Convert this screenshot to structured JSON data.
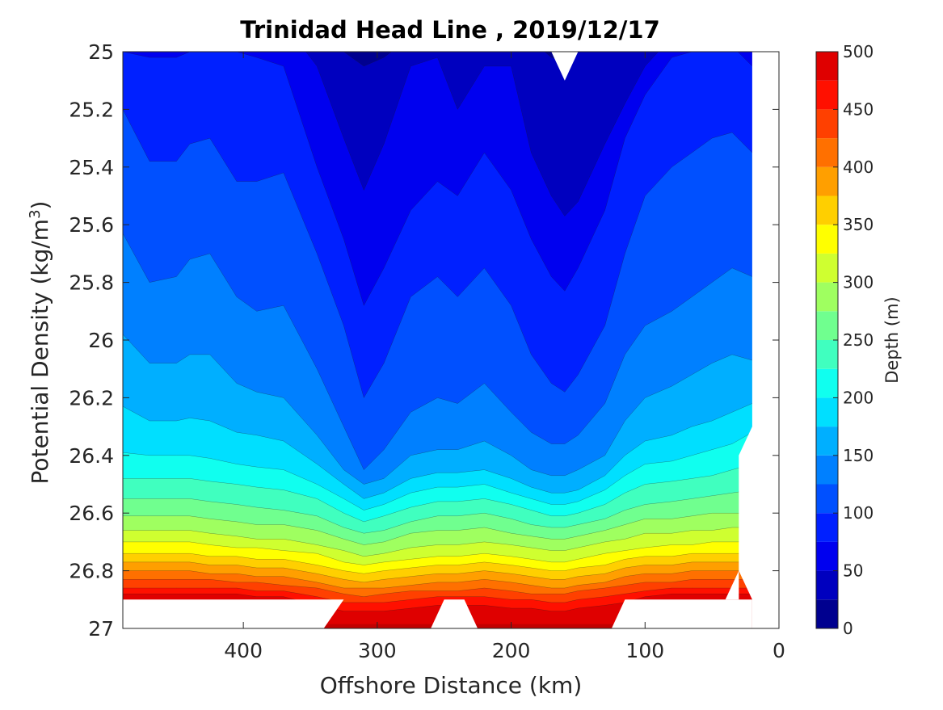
{
  "chart_data": {
    "type": "contour",
    "title": "Trinidad Head Line , 2019/12/17",
    "xlabel": "Offshore Distance (km)",
    "ylabel_main": "Potential Density (kg/m",
    "ylabel_sup": "3",
    "ylabel_close": ")",
    "xlim": [
      490,
      0
    ],
    "x_reversed": true,
    "ylim": [
      25,
      27
    ],
    "y_reversed": true,
    "x_ticks": [
      400,
      300,
      200,
      100,
      0
    ],
    "x_tick_labels": [
      "400",
      "300",
      "200",
      "100",
      "0"
    ],
    "y_ticks": [
      25,
      25.2,
      25.4,
      25.6,
      25.8,
      26,
      26.2,
      26.4,
      26.6,
      26.8,
      27
    ],
    "y_tick_labels": [
      "25",
      "25.2",
      "25.4",
      "25.6",
      "25.8",
      "26",
      "26.2",
      "26.4",
      "26.6",
      "26.8",
      "27"
    ],
    "colormap": "jet",
    "contour_step": 25,
    "colorbar": {
      "label": "Depth (m)",
      "range": [
        0,
        500
      ],
      "ticks": [
        0,
        50,
        100,
        150,
        200,
        250,
        300,
        350,
        400,
        450,
        500
      ],
      "tick_labels": [
        "0",
        "50",
        "100",
        "150",
        "200",
        "250",
        "300",
        "350",
        "400",
        "450",
        "500"
      ],
      "colors": [
        "#00008f",
        "#0000bf",
        "#0000ef",
        "#0020ff",
        "#0050ff",
        "#0080ff",
        "#00afff",
        "#00dfff",
        "#10ffef",
        "#40ffbf",
        "#70ff8f",
        "#9fff60",
        "#cfff30",
        "#ffff00",
        "#ffcf00",
        "#ff9f00",
        "#ff7000",
        "#ff4000",
        "#ff1000",
        "#df0000",
        "#af0000"
      ]
    },
    "depth_isolines": {
      "description_units": "potential density of each depth contour at each offshore distance",
      "x_km": [
        490,
        470,
        450,
        440,
        425,
        405,
        390,
        370,
        345,
        325,
        310,
        295,
        275,
        255,
        240,
        220,
        200,
        185,
        170,
        160,
        150,
        130,
        115,
        100,
        80,
        65,
        50,
        35,
        20
      ],
      "contours": [
        {
          "depth": 25,
          "y": [
            24.9,
            24.9,
            24.9,
            24.9,
            24.9,
            24.9,
            24.9,
            24.9,
            24.95,
            25.0,
            25.05,
            25.02,
            24.95,
            24.92,
            24.98,
            24.95,
            24.9,
            24.96,
            25.02,
            25.03,
            25.0,
            24.95,
            24.9,
            24.9,
            24.9,
            24.9,
            24.9,
            24.9,
            24.9
          ]
        },
        {
          "depth": 50,
          "y": [
            24.9,
            24.9,
            24.9,
            24.9,
            24.9,
            24.9,
            24.9,
            24.9,
            25.05,
            25.3,
            25.48,
            25.32,
            25.05,
            25.02,
            25.2,
            25.05,
            25.05,
            25.35,
            25.5,
            25.57,
            25.52,
            25.32,
            25.18,
            25.05,
            24.95,
            24.9,
            24.9,
            24.9,
            24.9
          ]
        },
        {
          "depth": 75,
          "y": [
            25.0,
            25.02,
            25.02,
            25.0,
            25.0,
            25.0,
            25.02,
            25.05,
            25.4,
            25.65,
            25.88,
            25.75,
            25.55,
            25.45,
            25.5,
            25.35,
            25.48,
            25.65,
            25.78,
            25.83,
            25.75,
            25.55,
            25.3,
            25.15,
            25.02,
            25.0,
            24.95,
            24.98,
            25.05
          ]
        },
        {
          "depth": 100,
          "y": [
            25.2,
            25.38,
            25.38,
            25.32,
            25.3,
            25.45,
            25.45,
            25.42,
            25.7,
            25.95,
            26.2,
            26.08,
            25.85,
            25.78,
            25.85,
            25.75,
            25.88,
            26.05,
            26.15,
            26.18,
            26.12,
            25.95,
            25.7,
            25.5,
            25.4,
            25.35,
            25.3,
            25.28,
            25.35
          ]
        },
        {
          "depth": 125,
          "y": [
            25.63,
            25.8,
            25.78,
            25.72,
            25.7,
            25.85,
            25.9,
            25.88,
            26.1,
            26.3,
            26.45,
            26.38,
            26.25,
            26.2,
            26.22,
            26.15,
            26.25,
            26.32,
            26.36,
            26.36,
            26.33,
            26.22,
            26.05,
            25.95,
            25.9,
            25.85,
            25.8,
            25.75,
            25.78
          ]
        },
        {
          "depth": 150,
          "y": [
            25.98,
            26.08,
            26.08,
            26.05,
            26.05,
            26.15,
            26.18,
            26.2,
            26.33,
            26.45,
            26.5,
            26.48,
            26.4,
            26.38,
            26.38,
            26.35,
            26.4,
            26.45,
            26.47,
            26.47,
            26.45,
            26.4,
            26.28,
            26.2,
            26.16,
            26.12,
            26.08,
            26.05,
            26.07
          ]
        },
        {
          "depth": 175,
          "y": [
            26.23,
            26.28,
            26.28,
            26.27,
            26.28,
            26.32,
            26.33,
            26.35,
            26.43,
            26.5,
            26.55,
            26.53,
            26.48,
            26.46,
            26.46,
            26.45,
            26.48,
            26.51,
            26.53,
            26.53,
            26.52,
            26.47,
            26.4,
            26.35,
            26.33,
            26.3,
            26.28,
            26.25,
            26.22
          ]
        },
        {
          "depth": 200,
          "y": [
            26.39,
            26.4,
            26.4,
            26.4,
            26.41,
            26.43,
            26.44,
            26.45,
            26.5,
            26.55,
            26.59,
            26.57,
            26.53,
            26.51,
            26.51,
            26.5,
            26.53,
            26.55,
            26.57,
            26.57,
            26.56,
            26.52,
            26.47,
            26.43,
            26.42,
            26.4,
            26.38,
            26.36,
            26.32
          ]
        },
        {
          "depth": 225,
          "y": [
            26.48,
            26.48,
            26.48,
            26.48,
            26.49,
            26.5,
            26.51,
            26.52,
            26.55,
            26.6,
            26.63,
            26.61,
            26.58,
            26.56,
            26.56,
            26.55,
            26.57,
            26.59,
            26.61,
            26.61,
            26.6,
            26.57,
            26.53,
            26.5,
            26.49,
            26.48,
            26.47,
            26.45,
            26.43
          ]
        },
        {
          "depth": 250,
          "y": [
            26.55,
            26.55,
            26.55,
            26.55,
            26.56,
            26.57,
            26.58,
            26.59,
            26.61,
            26.65,
            26.67,
            26.66,
            26.63,
            26.61,
            26.61,
            26.6,
            26.62,
            26.64,
            26.65,
            26.65,
            26.64,
            26.62,
            26.59,
            26.57,
            26.56,
            26.55,
            26.54,
            26.53,
            26.52
          ]
        },
        {
          "depth": 275,
          "y": [
            26.61,
            26.61,
            26.61,
            26.61,
            26.62,
            26.63,
            26.64,
            26.64,
            26.66,
            26.69,
            26.71,
            26.7,
            26.67,
            26.66,
            26.66,
            26.65,
            26.67,
            26.68,
            26.69,
            26.69,
            26.68,
            26.66,
            26.64,
            26.62,
            26.62,
            26.61,
            26.6,
            26.6,
            26.6
          ]
        },
        {
          "depth": 300,
          "y": [
            26.66,
            26.66,
            26.66,
            26.66,
            26.67,
            26.68,
            26.69,
            26.69,
            26.71,
            26.73,
            26.75,
            26.74,
            26.72,
            26.71,
            26.71,
            26.7,
            26.71,
            26.72,
            26.73,
            26.73,
            26.72,
            26.7,
            26.69,
            26.67,
            26.67,
            26.66,
            26.66,
            26.65,
            26.65
          ]
        },
        {
          "depth": 325,
          "y": [
            26.7,
            26.7,
            26.7,
            26.7,
            26.71,
            26.72,
            26.72,
            26.73,
            26.74,
            26.77,
            26.78,
            26.77,
            26.76,
            26.75,
            26.75,
            26.74,
            26.75,
            26.76,
            26.77,
            26.77,
            26.76,
            26.74,
            26.73,
            26.72,
            26.71,
            26.71,
            26.7,
            26.7,
            26.7
          ]
        },
        {
          "depth": 350,
          "y": [
            26.74,
            26.74,
            26.74,
            26.74,
            26.75,
            26.75,
            26.76,
            26.76,
            26.78,
            26.8,
            26.81,
            26.8,
            26.79,
            26.78,
            26.78,
            26.77,
            26.78,
            26.79,
            26.8,
            26.8,
            26.79,
            26.78,
            26.76,
            26.75,
            26.75,
            26.74,
            26.74,
            26.74,
            26.74
          ]
        },
        {
          "depth": 375,
          "y": [
            26.77,
            26.77,
            26.77,
            26.77,
            26.78,
            26.78,
            26.79,
            26.79,
            26.81,
            26.83,
            26.84,
            26.83,
            26.82,
            26.81,
            26.81,
            26.8,
            26.81,
            26.82,
            26.83,
            26.83,
            26.82,
            26.81,
            26.79,
            26.78,
            26.78,
            26.77,
            26.77,
            26.77,
            26.77
          ]
        },
        {
          "depth": 400,
          "y": [
            26.8,
            26.8,
            26.8,
            26.8,
            26.81,
            26.81,
            26.82,
            26.82,
            26.84,
            26.86,
            26.86,
            26.86,
            26.85,
            26.84,
            26.84,
            26.83,
            26.84,
            26.85,
            26.86,
            26.86,
            26.85,
            26.84,
            26.82,
            26.81,
            26.81,
            26.8,
            26.8,
            26.8,
            26.8
          ]
        },
        {
          "depth": 425,
          "y": [
            26.83,
            26.83,
            26.83,
            26.83,
            26.83,
            26.84,
            26.84,
            26.85,
            26.86,
            26.88,
            26.89,
            26.88,
            26.87,
            26.87,
            26.87,
            26.86,
            26.87,
            26.88,
            26.88,
            26.88,
            26.87,
            26.86,
            26.85,
            26.84,
            26.84,
            26.83,
            26.83,
            26.83,
            26.83
          ]
        },
        {
          "depth": 450,
          "y": [
            26.86,
            26.86,
            26.86,
            26.86,
            26.86,
            26.86,
            26.87,
            26.87,
            26.89,
            26.91,
            26.91,
            26.91,
            26.9,
            26.89,
            26.89,
            26.89,
            26.9,
            26.9,
            26.91,
            26.91,
            26.9,
            26.89,
            26.88,
            26.87,
            26.86,
            26.86,
            26.86,
            26.86,
            26.86
          ]
        },
        {
          "depth": 475,
          "y": [
            26.88,
            26.88,
            26.88,
            26.88,
            26.88,
            26.88,
            26.89,
            26.89,
            26.92,
            26.94,
            26.94,
            26.94,
            26.93,
            26.92,
            26.92,
            26.92,
            26.93,
            26.93,
            26.94,
            26.94,
            26.93,
            26.92,
            26.91,
            26.89,
            26.88,
            26.88,
            26.88,
            26.88,
            26.88
          ]
        }
      ]
    },
    "data_mask": {
      "description_units": "white no-data regions in offshore km and potential density",
      "bottom_gaps": [
        {
          "x": [
            490,
            490,
            340,
            325
          ],
          "y": [
            26.9,
            27.0,
            27.0,
            26.9
          ]
        },
        {
          "x": [
            260,
            250,
            235,
            225
          ],
          "y": [
            27.0,
            26.9,
            26.9,
            27.0
          ]
        },
        {
          "x": [
            125,
            115,
            20,
            20,
            30,
            30,
            40
          ],
          "y": [
            27.0,
            26.9,
            26.9,
            27.0,
            27.0,
            27.0,
            27.0
          ]
        }
      ],
      "right_gap": {
        "x": [
          20,
          20,
          30,
          30,
          20,
          20,
          0,
          0
        ],
        "y": [
          25.0,
          26.3,
          26.4,
          26.8,
          26.9,
          27.0,
          27.0,
          25.0
        ]
      },
      "right_gap_lower": {
        "x": [
          40,
          30,
          30
        ],
        "y": [
          26.9,
          26.8,
          26.9
        ]
      },
      "top_notch": {
        "x": [
          170,
          160,
          150
        ],
        "y": [
          25.0,
          25.1,
          25.0
        ]
      }
    }
  }
}
